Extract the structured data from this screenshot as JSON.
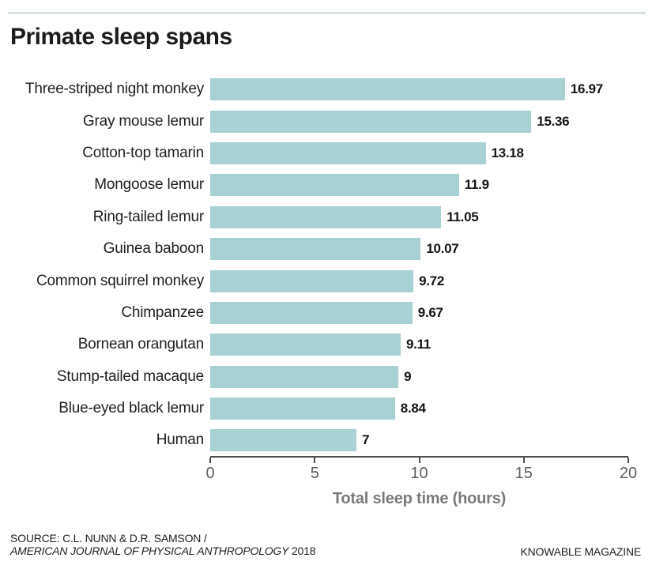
{
  "header": {
    "title": "Primate sleep spans"
  },
  "chart_data": {
    "type": "bar",
    "orientation": "horizontal",
    "title": "Primate sleep spans",
    "categories": [
      "Three-striped night monkey",
      "Gray mouse lemur",
      "Cotton-top tamarin",
      "Mongoose lemur",
      "Ring-tailed lemur",
      "Guinea baboon",
      "Common squirrel monkey",
      "Chimpanzee",
      "Bornean orangutan",
      "Stump-tailed macaque",
      "Blue-eyed black lemur",
      "Human"
    ],
    "values": [
      16.97,
      15.36,
      13.18,
      11.9,
      11.05,
      10.07,
      9.72,
      9.67,
      9.11,
      9,
      8.84,
      7
    ],
    "value_labels": [
      "16.97",
      "15.36",
      "13.18",
      "11.9",
      "11.05",
      "10.07",
      "9.72",
      "9.67",
      "9.11",
      "9",
      "8.84",
      "7"
    ],
    "xlabel": "Total sleep time (hours)",
    "ylabel": "",
    "xlim": [
      0,
      20
    ],
    "x_ticks": [
      0,
      5,
      10,
      15,
      20
    ],
    "grid": false,
    "legend": false,
    "bar_color": "#a7d1d3"
  },
  "footer": {
    "source_line1": "SOURCE: C.L. NUNN & D.R. SAMSON /",
    "source_journal": "AMERICAN JOURNAL OF PHYSICAL ANTHROPOLOGY",
    "source_year": "2018",
    "branding": "KNOWABLE MAGAZINE"
  },
  "colors": {
    "bar": "#a7d1d3",
    "top_rule": "#d5e0e0",
    "axis_line": "#4d4d4d",
    "tick_label": "#5f5f5f",
    "axis_label": "#7a7a7a",
    "title_text": "#1c1c1c"
  }
}
